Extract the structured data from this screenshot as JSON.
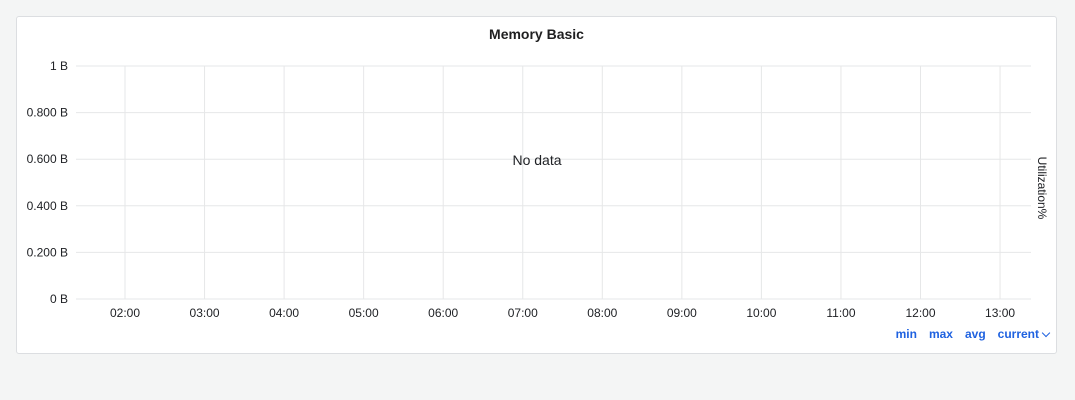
{
  "panel": {
    "title": "Memory Basic",
    "no_data_text": "No data",
    "right_axis_label": "Utilization%"
  },
  "legend": {
    "min": "min",
    "max": "max",
    "avg": "avg",
    "current": "current"
  },
  "chart_data": {
    "type": "line",
    "title": "Memory Basic",
    "xlabel": "",
    "ylabel": "",
    "y2label": "Utilization%",
    "ylim": [
      0,
      1
    ],
    "y_ticks": [
      {
        "value": 0,
        "label": "0 B"
      },
      {
        "value": 0.2,
        "label": "0.200 B"
      },
      {
        "value": 0.4,
        "label": "0.400 B"
      },
      {
        "value": 0.6,
        "label": "0.600 B"
      },
      {
        "value": 0.8,
        "label": "0.800 B"
      },
      {
        "value": 1,
        "label": "1 B"
      }
    ],
    "x_ticks": [
      "02:00",
      "03:00",
      "04:00",
      "05:00",
      "06:00",
      "07:00",
      "08:00",
      "09:00",
      "10:00",
      "11:00",
      "12:00",
      "13:00"
    ],
    "series": [],
    "grid": true,
    "colors": {
      "grid": "#e6e7e8",
      "tick_text": "#202226",
      "legend": "#1f62e0"
    }
  }
}
